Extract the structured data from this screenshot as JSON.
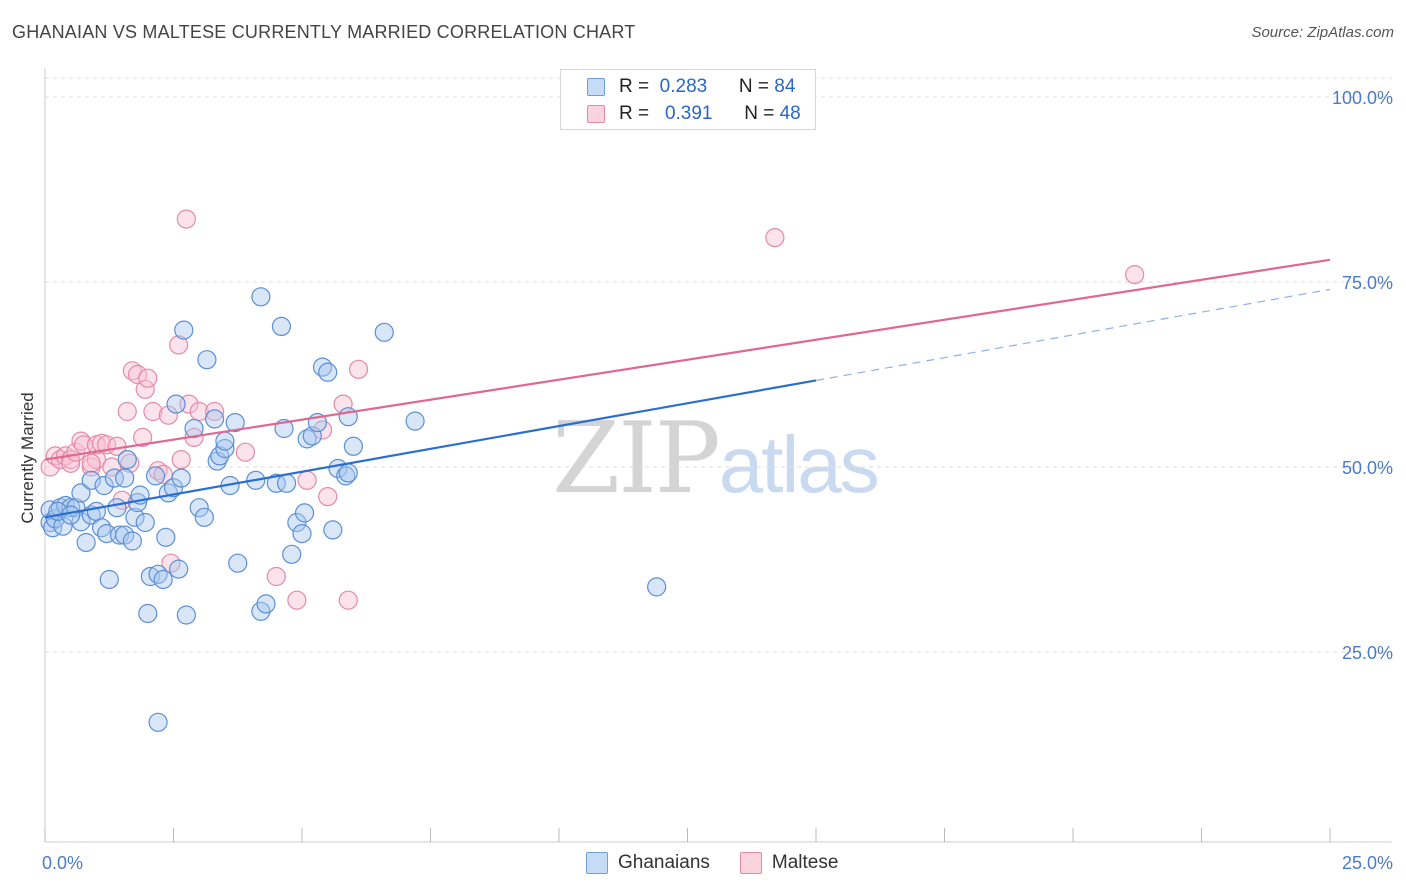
{
  "title": "GHANAIAN VS MALTESE CURRENTLY MARRIED CORRELATION CHART",
  "source": "Source: ZipAtlas.com",
  "watermark": {
    "zip": "ZIP",
    "atlas": "atlas"
  },
  "legend": {
    "r_label": "R =",
    "n_label": "N =",
    "rows": [
      {
        "r": "0.283",
        "n": "84",
        "color": "#a8c8f0",
        "border": "#6f9fd8"
      },
      {
        "r": "0.391",
        "n": "48",
        "color": "#f8c0d2",
        "border": "#e48aa8"
      }
    ]
  },
  "bottom_legend": [
    {
      "label": "Ghanaians",
      "color": "#a8c8f0",
      "border": "#6f9fd8"
    },
    {
      "label": "Maltese",
      "color": "#f8c0d2",
      "border": "#e48aa8"
    }
  ],
  "colors": {
    "blue_fill": "#a8c8f0",
    "blue_stroke": "#5b8fd6",
    "blue_line": "#2a6fd0",
    "pink_fill": "#f8c0d2",
    "pink_stroke": "#e48aa8",
    "pink_line": "#e06890",
    "grid": "#dddddd",
    "tick_text": "#4a7cc9"
  },
  "chart_data": {
    "type": "scatter",
    "title": "GHANAIAN VS MALTESE CURRENTLY MARRIED CORRELATION CHART",
    "xlabel": "",
    "ylabel": "Currently Married",
    "xlim": [
      0,
      25
    ],
    "ylim": [
      0,
      102
    ],
    "x_tick_labels": [
      {
        "v": 0,
        "label": "0.0%"
      },
      {
        "v": 25,
        "label": "25.0%"
      }
    ],
    "x_minor_ticks": [
      0,
      2.5,
      5,
      7.5,
      10,
      12.5,
      15,
      17.5,
      20,
      22.5,
      25
    ],
    "y_ticks": [
      {
        "v": 25,
        "label": "25.0%"
      },
      {
        "v": 50,
        "label": "50.0%"
      },
      {
        "v": 75,
        "label": "75.0%"
      },
      {
        "v": 100,
        "label": "100.0%"
      }
    ],
    "grid": true,
    "series": [
      {
        "name": "Ghanaians",
        "points": [
          [
            0.1,
            42.5
          ],
          [
            0.1,
            44.2
          ],
          [
            0.15,
            41.8
          ],
          [
            0.2,
            43.0
          ],
          [
            0.3,
            44.5
          ],
          [
            0.35,
            42.0
          ],
          [
            0.4,
            44.8
          ],
          [
            0.5,
            44.5
          ],
          [
            0.6,
            44.5
          ],
          [
            0.7,
            42.6
          ],
          [
            0.7,
            46.5
          ],
          [
            0.8,
            39.8
          ],
          [
            0.9,
            43.5
          ],
          [
            0.9,
            48.2
          ],
          [
            1.0,
            44.0
          ],
          [
            1.1,
            41.8
          ],
          [
            1.15,
            47.5
          ],
          [
            1.2,
            41.0
          ],
          [
            1.25,
            34.8
          ],
          [
            1.35,
            48.5
          ],
          [
            1.4,
            44.5
          ],
          [
            1.45,
            40.8
          ],
          [
            1.55,
            40.8
          ],
          [
            1.55,
            48.5
          ],
          [
            1.6,
            51.0
          ],
          [
            1.7,
            40.0
          ],
          [
            1.75,
            43.2
          ],
          [
            1.8,
            45.2
          ],
          [
            1.85,
            46.2
          ],
          [
            1.95,
            42.5
          ],
          [
            2.0,
            30.2
          ],
          [
            2.05,
            35.2
          ],
          [
            2.15,
            48.8
          ],
          [
            2.2,
            35.5
          ],
          [
            2.3,
            34.8
          ],
          [
            2.35,
            40.5
          ],
          [
            2.4,
            46.5
          ],
          [
            2.5,
            47.2
          ],
          [
            2.55,
            58.5
          ],
          [
            2.6,
            36.2
          ],
          [
            2.65,
            48.5
          ],
          [
            2.7,
            68.5
          ],
          [
            2.75,
            30.0
          ],
          [
            2.9,
            55.2
          ],
          [
            3.0,
            44.5
          ],
          [
            3.1,
            43.2
          ],
          [
            3.15,
            64.5
          ],
          [
            3.3,
            56.5
          ],
          [
            3.35,
            50.8
          ],
          [
            3.4,
            51.5
          ],
          [
            3.5,
            52.5
          ],
          [
            3.5,
            53.5
          ],
          [
            3.6,
            47.5
          ],
          [
            3.7,
            56.0
          ],
          [
            3.75,
            37.0
          ],
          [
            4.1,
            48.2
          ],
          [
            4.2,
            73.0
          ],
          [
            4.2,
            30.5
          ],
          [
            4.3,
            31.5
          ],
          [
            4.5,
            47.8
          ],
          [
            4.6,
            69.0
          ],
          [
            4.65,
            55.2
          ],
          [
            4.7,
            47.8
          ],
          [
            4.8,
            38.2
          ],
          [
            4.9,
            42.5
          ],
          [
            5.0,
            41.0
          ],
          [
            5.05,
            43.8
          ],
          [
            5.1,
            53.8
          ],
          [
            5.2,
            54.2
          ],
          [
            5.3,
            56.0
          ],
          [
            5.4,
            63.5
          ],
          [
            5.5,
            62.8
          ],
          [
            5.6,
            41.5
          ],
          [
            5.7,
            49.8
          ],
          [
            5.85,
            48.8
          ],
          [
            5.9,
            49.2
          ],
          [
            5.9,
            56.8
          ],
          [
            6.0,
            52.8
          ],
          [
            6.6,
            68.2
          ],
          [
            7.2,
            56.2
          ],
          [
            11.9,
            33.8
          ],
          [
            2.2,
            15.5
          ],
          [
            0.25,
            44.0
          ],
          [
            0.5,
            43.5
          ]
        ]
      },
      {
        "name": "Maltese",
        "points": [
          [
            0.1,
            50.0
          ],
          [
            0.2,
            51.5
          ],
          [
            0.3,
            51.0
          ],
          [
            0.4,
            51.5
          ],
          [
            0.5,
            51.0
          ],
          [
            0.5,
            50.5
          ],
          [
            0.6,
            52.0
          ],
          [
            0.7,
            53.5
          ],
          [
            0.75,
            53.0
          ],
          [
            0.9,
            50.0
          ],
          [
            1.0,
            51.0
          ],
          [
            1.0,
            53.0
          ],
          [
            1.1,
            53.2
          ],
          [
            1.2,
            53.0
          ],
          [
            1.3,
            50.0
          ],
          [
            1.4,
            52.8
          ],
          [
            1.5,
            45.5
          ],
          [
            1.6,
            57.5
          ],
          [
            1.65,
            50.5
          ],
          [
            1.7,
            63.0
          ],
          [
            1.8,
            62.5
          ],
          [
            1.9,
            54.0
          ],
          [
            1.95,
            60.5
          ],
          [
            2.0,
            62.0
          ],
          [
            2.1,
            57.5
          ],
          [
            2.2,
            49.5
          ],
          [
            2.3,
            49.0
          ],
          [
            2.4,
            57.0
          ],
          [
            2.45,
            37.0
          ],
          [
            2.6,
            66.5
          ],
          [
            2.65,
            51.0
          ],
          [
            2.75,
            83.5
          ],
          [
            2.8,
            58.5
          ],
          [
            2.9,
            54.0
          ],
          [
            3.0,
            57.5
          ],
          [
            3.3,
            57.5
          ],
          [
            3.9,
            52.0
          ],
          [
            4.5,
            35.2
          ],
          [
            4.9,
            32.0
          ],
          [
            5.1,
            48.2
          ],
          [
            5.4,
            55.0
          ],
          [
            5.5,
            46.0
          ],
          [
            5.8,
            58.5
          ],
          [
            5.9,
            32.0
          ],
          [
            6.1,
            63.2
          ],
          [
            14.2,
            81.0
          ],
          [
            21.2,
            76.0
          ],
          [
            0.9,
            50.5
          ]
        ]
      }
    ],
    "trend_lines": [
      {
        "series": "Ghanaians",
        "solid": [
          [
            0,
            43.2
          ],
          [
            15,
            61.7
          ]
        ],
        "dashed": [
          [
            15,
            61.7
          ],
          [
            25,
            74.0
          ]
        ]
      },
      {
        "series": "Maltese",
        "solid": [
          [
            0,
            51.0
          ],
          [
            25,
            78.0
          ]
        ]
      }
    ]
  }
}
